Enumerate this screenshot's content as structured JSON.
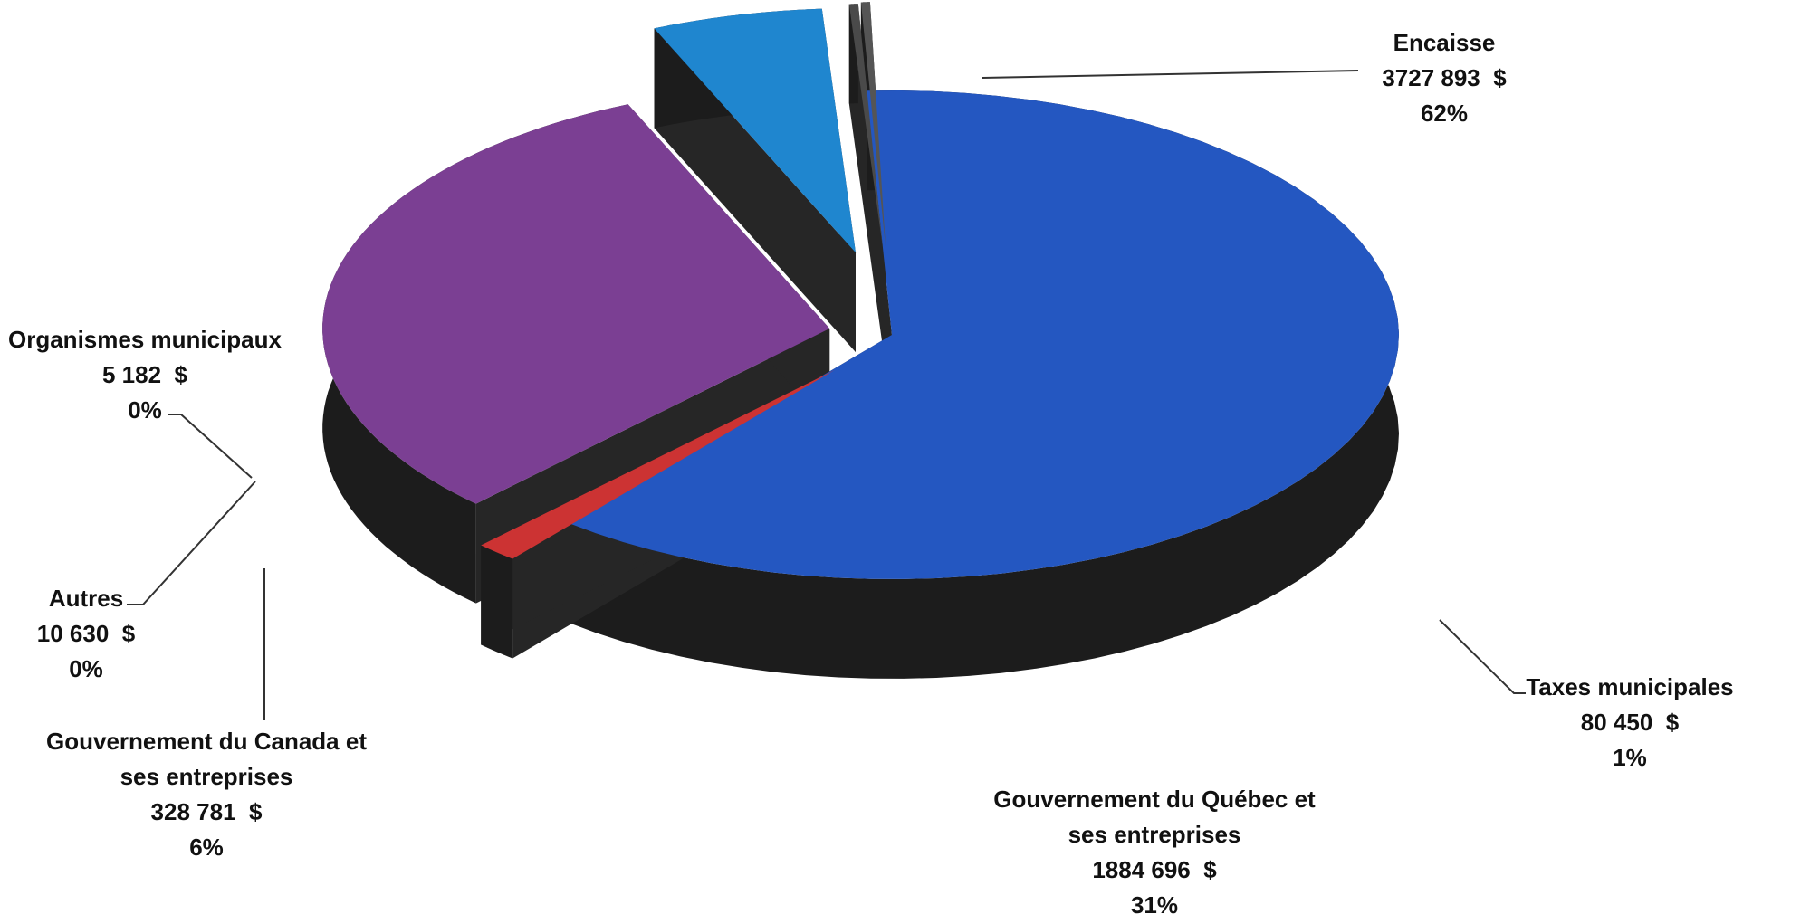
{
  "chart_data": {
    "type": "pie",
    "variant": "3d-exploded",
    "slices": [
      {
        "name": "Encaisse",
        "name_lines": [
          "Encaisse"
        ],
        "amount": "3727 893",
        "currency": "$",
        "value": 3727893,
        "percent": "62%",
        "color": "#2457c1"
      },
      {
        "name": "Taxes municipales",
        "name_lines": [
          "Taxes municipales"
        ],
        "amount": "80 450",
        "currency": "$",
        "value": 80450,
        "percent": "1%",
        "color": "#cc3333"
      },
      {
        "name": "Gouvernement du Québec et ses entreprises",
        "name_lines": [
          "Gouvernement du Québec et",
          "ses entreprises"
        ],
        "amount": "1884 696",
        "currency": "$",
        "value": 1884696,
        "percent": "31%",
        "color": "#7b3f93"
      },
      {
        "name": "Gouvernement du Canada et ses entreprises",
        "name_lines": [
          "Gouvernement du Canada et",
          "ses entreprises"
        ],
        "amount": "328 781",
        "currency": "$",
        "value": 328781,
        "percent": "6%",
        "color": "#1f86cf"
      },
      {
        "name": "Autres",
        "name_lines": [
          "Autres"
        ],
        "amount": "10 630",
        "currency": "$",
        "value": 10630,
        "percent": "0%",
        "color": "#4a4a4a"
      },
      {
        "name": "Organismes municipaux",
        "name_lines": [
          "Organismes municipaux"
        ],
        "amount": "5 182",
        "currency": "$",
        "value": 5182,
        "percent": "0%",
        "color": "#555555"
      }
    ],
    "title": "",
    "legend": "none"
  }
}
